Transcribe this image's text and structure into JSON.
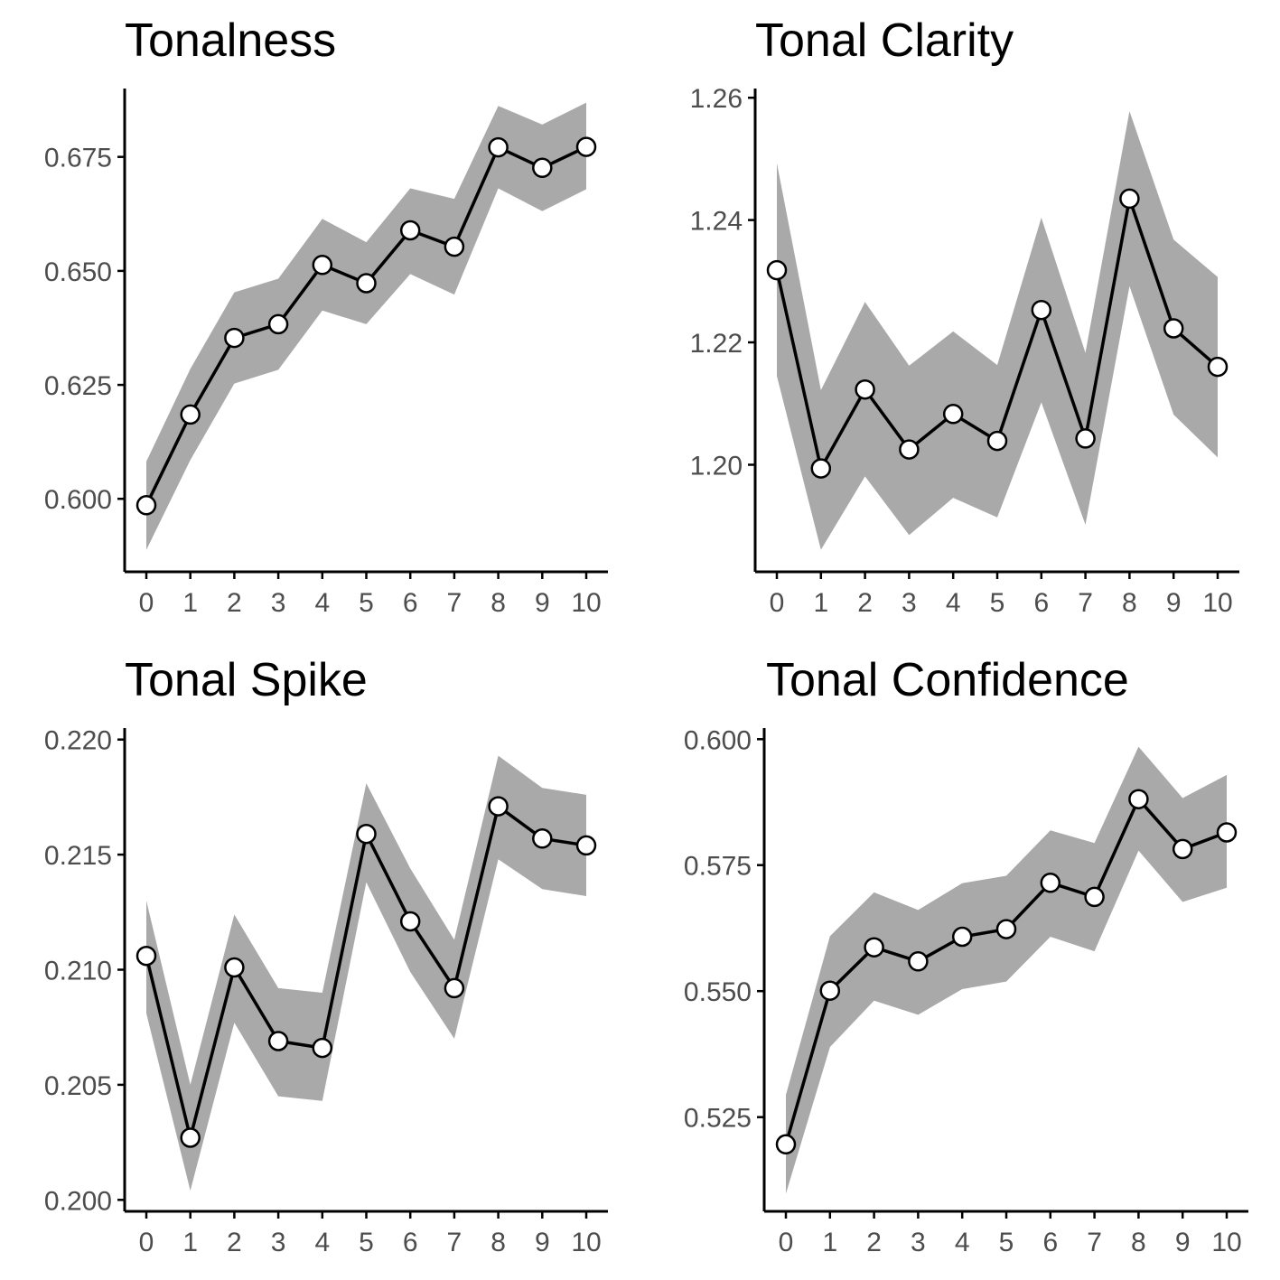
{
  "chart_data": [
    {
      "type": "line",
      "title": "Tonalness",
      "x": [
        0,
        1,
        2,
        3,
        4,
        5,
        6,
        7,
        8,
        9,
        10
      ],
      "yticks": [
        "0.600",
        "0.625",
        "0.650",
        "0.675"
      ],
      "ylim": [
        0.584,
        0.69
      ],
      "series": [
        {
          "values": [
            0.5986,
            0.6185,
            0.6353,
            0.6383,
            0.6513,
            0.6473,
            0.6589,
            0.6553,
            0.6771,
            0.6726,
            0.6772
          ],
          "lower": [
            0.5888,
            0.6085,
            0.6253,
            0.6283,
            0.6413,
            0.6383,
            0.6493,
            0.6448,
            0.6681,
            0.6631,
            0.6679
          ],
          "upper": [
            0.6082,
            0.6285,
            0.6453,
            0.6483,
            0.6614,
            0.6563,
            0.6681,
            0.6658,
            0.6862,
            0.6821,
            0.6869
          ]
        }
      ]
    },
    {
      "type": "line",
      "title": "Tonal Clarity",
      "x": [
        0,
        1,
        2,
        3,
        4,
        5,
        6,
        7,
        8,
        9,
        10
      ],
      "yticks": [
        "1.20",
        "1.22",
        "1.24",
        "1.26"
      ],
      "ylim": [
        1.1825,
        1.2615
      ],
      "series": [
        {
          "values": [
            1.2318,
            1.1994,
            1.2123,
            1.2025,
            1.2083,
            1.2039,
            1.2253,
            1.2043,
            1.2435,
            1.2223,
            1.216
          ],
          "lower": [
            1.2145,
            1.1861,
            1.1981,
            1.1885,
            1.1946,
            1.1914,
            1.2102,
            1.1902,
            1.2292,
            1.2082,
            1.2012
          ],
          "upper": [
            1.2493,
            1.2122,
            1.2266,
            1.2162,
            1.2218,
            1.2163,
            1.2404,
            1.2183,
            1.2578,
            1.2368,
            1.2307
          ]
        }
      ]
    },
    {
      "type": "line",
      "title": "Tonal Spike",
      "x": [
        0,
        1,
        2,
        3,
        4,
        5,
        6,
        7,
        8,
        9,
        10
      ],
      "yticks": [
        "0.200",
        "0.205",
        "0.210",
        "0.215",
        "0.220"
      ],
      "ylim": [
        0.1995,
        0.2205
      ],
      "series": [
        {
          "values": [
            0.2106,
            0.2027,
            0.2101,
            0.2069,
            0.2066,
            0.2159,
            0.2121,
            0.2092,
            0.2171,
            0.2157,
            0.2154
          ],
          "lower": [
            0.2081,
            0.2004,
            0.2077,
            0.2045,
            0.2043,
            0.2138,
            0.2099,
            0.207,
            0.2148,
            0.2135,
            0.2132
          ],
          "upper": [
            0.213,
            0.205,
            0.2124,
            0.2092,
            0.209,
            0.2181,
            0.2144,
            0.2113,
            0.2193,
            0.2179,
            0.2176
          ]
        }
      ]
    },
    {
      "type": "line",
      "title": "Tonal Confidence",
      "x": [
        0,
        1,
        2,
        3,
        4,
        5,
        6,
        7,
        8,
        9,
        10
      ],
      "yticks": [
        "0.525",
        "0.550",
        "0.575",
        "0.600"
      ],
      "ylim": [
        0.5063,
        0.6022
      ],
      "series": [
        {
          "values": [
            0.5196,
            0.5501,
            0.5587,
            0.5559,
            0.5608,
            0.5623,
            0.5715,
            0.5687,
            0.5881,
            0.5782,
            0.5815
          ],
          "lower": [
            0.5098,
            0.5389,
            0.5481,
            0.5453,
            0.5504,
            0.5519,
            0.5608,
            0.5579,
            0.5779,
            0.5677,
            0.5705
          ],
          "upper": [
            0.5294,
            0.5609,
            0.5696,
            0.5661,
            0.5714,
            0.5729,
            0.5819,
            0.5794,
            0.5985,
            0.5883,
            0.5929
          ]
        }
      ]
    }
  ]
}
